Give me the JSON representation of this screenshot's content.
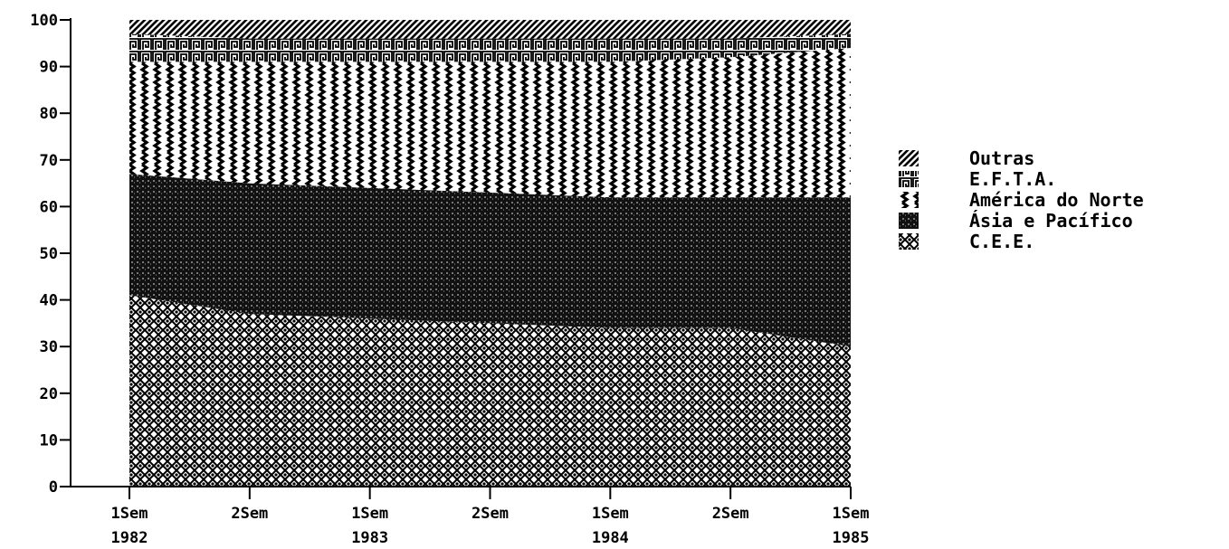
{
  "chart_data": {
    "type": "area",
    "stacked": true,
    "x": [
      "1Sem",
      "2Sem",
      "1Sem",
      "2Sem",
      "1Sem",
      "2Sem",
      "1Sem"
    ],
    "year_labels": [
      "1982",
      "1983",
      "1984",
      "1985"
    ],
    "ylim": [
      0,
      100
    ],
    "yticks": [
      0,
      10,
      20,
      30,
      40,
      50,
      60,
      70,
      80,
      90,
      100
    ],
    "grid": false,
    "legend_position": "right",
    "series": [
      {
        "name": "C.E.E.",
        "values": [
          41,
          37,
          36,
          35,
          34,
          34,
          30
        ]
      },
      {
        "name": "Ásia e Pacífico",
        "values": [
          26,
          28,
          28,
          28,
          28,
          28,
          32
        ]
      },
      {
        "name": "América do Norte",
        "values": [
          24,
          26,
          27,
          28,
          29,
          30,
          32
        ]
      },
      {
        "name": "E.F.T.A.",
        "values": [
          6,
          5,
          5,
          5,
          5,
          4,
          3
        ]
      },
      {
        "name": "Outras",
        "values": [
          3,
          4,
          4,
          4,
          4,
          4,
          3
        ]
      }
    ],
    "legend_order": [
      "Outras",
      "E.F.T.A.",
      "América do Norte",
      "Ásia e Pacífico",
      "C.E.E."
    ]
  }
}
